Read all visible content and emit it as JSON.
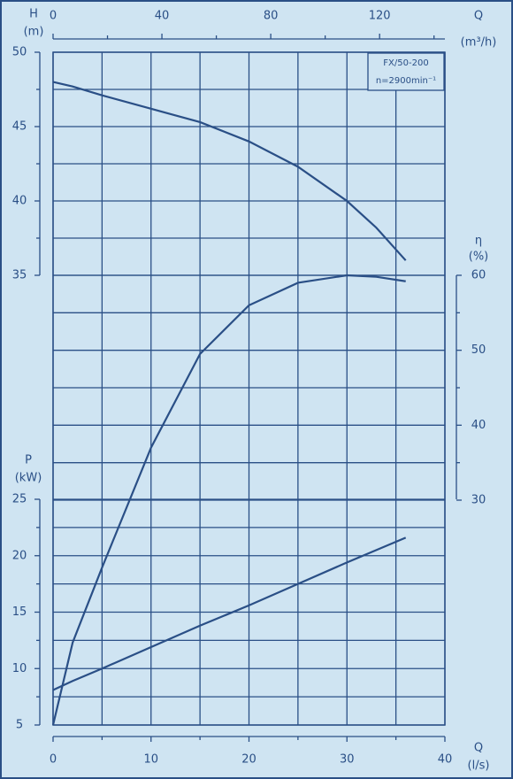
{
  "chart_data": {
    "type": "line",
    "label_box": [
      "FX/50-200",
      "n=2900min⁻¹"
    ],
    "x": [
      0,
      2,
      5,
      10,
      15,
      20,
      25,
      30,
      33,
      36
    ],
    "xlim": [
      0,
      40
    ],
    "xticks": [
      0,
      10,
      20,
      30,
      40
    ],
    "xminor": [
      5,
      15,
      25,
      35
    ],
    "x_label": "Q",
    "x_unit": "(l/s)",
    "x2lim": [
      0,
      144
    ],
    "x2ticks": [
      0,
      40,
      80,
      120
    ],
    "x2minor": [
      20,
      60,
      100,
      140
    ],
    "x2_label": "Q",
    "x2_unit": "(m³/h)",
    "axes": {
      "H": {
        "label": "H",
        "unit": "(m)",
        "ylim": [
          35,
          50
        ],
        "yticks": [
          35,
          40,
          45,
          50
        ],
        "yminor": [
          37.5,
          42.5,
          47.5
        ]
      },
      "eta": {
        "label": "η",
        "unit": "(%)",
        "ylim": [
          0,
          60
        ],
        "yticks": [
          30,
          40,
          50,
          60
        ],
        "yminor": [
          35,
          45,
          55
        ]
      },
      "P": {
        "label": "P",
        "unit": "(kW)",
        "ylim": [
          5,
          25
        ],
        "yticks": [
          5,
          10,
          15,
          20,
          25
        ],
        "yminor": [
          7.5,
          12.5,
          17.5,
          22.5
        ]
      }
    },
    "grid": true,
    "series": [
      {
        "axis": "H",
        "color": "#2a4f86",
        "values": [
          48,
          47.7,
          47.1,
          46.2,
          45.3,
          44,
          42.3,
          40,
          38.2,
          36
        ]
      },
      {
        "axis": "eta",
        "color": "#2a4f86",
        "values": [
          0,
          11,
          21,
          37,
          49.5,
          56,
          59,
          60,
          59.8,
          59.2
        ]
      },
      {
        "axis": "P",
        "color": "#2a4f86",
        "values": [
          8.1,
          8.9,
          10.0,
          11.9,
          13.8,
          15.6,
          17.5,
          19.4,
          20.5,
          21.6
        ]
      }
    ]
  }
}
